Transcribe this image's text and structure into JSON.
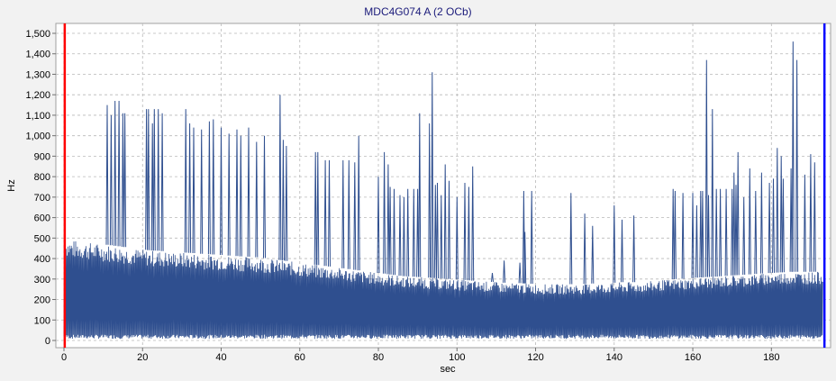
{
  "chart_data": {
    "type": "line",
    "title": "MDC4G074 A (2 OCb)",
    "xlabel": "sec",
    "ylabel": "Hz",
    "xlim": [
      0,
      195
    ],
    "ylim": [
      0,
      1550
    ],
    "x_ticks": [
      0,
      20,
      40,
      60,
      80,
      100,
      120,
      140,
      160,
      180
    ],
    "y_ticks": [
      0,
      100,
      200,
      300,
      400,
      500,
      600,
      700,
      800,
      900,
      1000,
      1100,
      1200,
      1300,
      1400,
      1500
    ],
    "x_tick_labels": [
      "0",
      "20",
      "40",
      "60",
      "80",
      "100",
      "120",
      "140",
      "160",
      "180"
    ],
    "y_tick_labels": [
      "0",
      "100",
      "200",
      "300",
      "400",
      "500",
      "600",
      "700",
      "800",
      "900",
      "1,000",
      "1,100",
      "1,200",
      "1,300",
      "1,400",
      "1,500"
    ],
    "grid": true,
    "cursors": [
      {
        "x": 0.2,
        "color": "#ff0000"
      },
      {
        "x": 193.5,
        "color": "#0000ff"
      }
    ],
    "series": [
      {
        "color": "#2f4f8f",
        "x": [
          0,
          2,
          4,
          6,
          8,
          10,
          12,
          14,
          16,
          18,
          20,
          22,
          24,
          26,
          28,
          30,
          32,
          34,
          36,
          38,
          40,
          42,
          44,
          46,
          48,
          50,
          52,
          54,
          56,
          58,
          60,
          62,
          64,
          66,
          68,
          70,
          72,
          74,
          76,
          78,
          80,
          82,
          84,
          86,
          88,
          90,
          92,
          94,
          96,
          98,
          100,
          102,
          104,
          106,
          108,
          110,
          112,
          114,
          116,
          118,
          120,
          122,
          124,
          126,
          128,
          130,
          132,
          134,
          136,
          138,
          140,
          142,
          144,
          146,
          148,
          150,
          152,
          154,
          156,
          158,
          160,
          162,
          164,
          166,
          168,
          170,
          172,
          174,
          176,
          178,
          180,
          182,
          184,
          186,
          188,
          190,
          192,
          193
        ],
        "envelope": [
          500,
          490,
          485,
          480,
          475,
          470,
          465,
          460,
          455,
          450,
          445,
          440,
          438,
          435,
          432,
          430,
          428,
          425,
          422,
          420,
          418,
          415,
          412,
          410,
          408,
          405,
          400,
          395,
          390,
          385,
          380,
          375,
          370,
          365,
          360,
          355,
          350,
          345,
          340,
          335,
          330,
          325,
          320,
          315,
          312,
          310,
          308,
          305,
          302,
          300,
          298,
          295,
          292,
          290,
          288,
          285,
          282,
          280,
          280,
          278,
          276,
          275,
          275,
          275,
          275,
          275,
          275,
          278,
          280,
          280,
          282,
          285,
          285,
          285,
          288,
          290,
          295,
          298,
          300,
          302,
          305,
          308,
          310,
          312,
          315,
          318,
          320,
          322,
          325,
          328,
          330,
          332,
          335,
          335,
          335,
          335,
          335,
          340
        ],
        "spikes": [
          {
            "x": 11,
            "y": 1150
          },
          {
            "x": 12,
            "y": 1100
          },
          {
            "x": 13,
            "y": 1170
          },
          {
            "x": 14,
            "y": 1170
          },
          {
            "x": 15,
            "y": 1110
          },
          {
            "x": 15.5,
            "y": 1110
          },
          {
            "x": 21,
            "y": 1130
          },
          {
            "x": 21.5,
            "y": 1130
          },
          {
            "x": 22.5,
            "y": 1060
          },
          {
            "x": 23,
            "y": 1130
          },
          {
            "x": 24,
            "y": 1130
          },
          {
            "x": 25,
            "y": 1110
          },
          {
            "x": 31,
            "y": 1130
          },
          {
            "x": 32,
            "y": 1060
          },
          {
            "x": 33,
            "y": 1040
          },
          {
            "x": 35,
            "y": 1030
          },
          {
            "x": 37,
            "y": 1070
          },
          {
            "x": 38,
            "y": 1080
          },
          {
            "x": 40,
            "y": 1040
          },
          {
            "x": 42,
            "y": 1010
          },
          {
            "x": 44,
            "y": 1030
          },
          {
            "x": 45,
            "y": 1000
          },
          {
            "x": 47,
            "y": 1040
          },
          {
            "x": 49,
            "y": 970
          },
          {
            "x": 51,
            "y": 1000
          },
          {
            "x": 55,
            "y": 1200
          },
          {
            "x": 55.8,
            "y": 980
          },
          {
            "x": 56.6,
            "y": 950
          },
          {
            "x": 64,
            "y": 920
          },
          {
            "x": 64.6,
            "y": 920
          },
          {
            "x": 66.5,
            "y": 880
          },
          {
            "x": 67.5,
            "y": 880
          },
          {
            "x": 71,
            "y": 880
          },
          {
            "x": 72.5,
            "y": 880
          },
          {
            "x": 74,
            "y": 870
          },
          {
            "x": 75,
            "y": 1000
          },
          {
            "x": 80,
            "y": 800
          },
          {
            "x": 81.5,
            "y": 920
          },
          {
            "x": 82.5,
            "y": 860
          },
          {
            "x": 83,
            "y": 750
          },
          {
            "x": 84,
            "y": 740
          },
          {
            "x": 85.5,
            "y": 710
          },
          {
            "x": 86.5,
            "y": 700
          },
          {
            "x": 87.5,
            "y": 740
          },
          {
            "x": 89,
            "y": 740
          },
          {
            "x": 90,
            "y": 740
          },
          {
            "x": 90.5,
            "y": 1110
          },
          {
            "x": 93,
            "y": 1060
          },
          {
            "x": 93.7,
            "y": 1310
          },
          {
            "x": 94.5,
            "y": 760
          },
          {
            "x": 95,
            "y": 770
          },
          {
            "x": 96,
            "y": 710
          },
          {
            "x": 97,
            "y": 860
          },
          {
            "x": 98,
            "y": 780
          },
          {
            "x": 100,
            "y": 700
          },
          {
            "x": 102,
            "y": 770
          },
          {
            "x": 103,
            "y": 750
          },
          {
            "x": 104,
            "y": 850
          },
          {
            "x": 109,
            "y": 330
          },
          {
            "x": 112,
            "y": 390
          },
          {
            "x": 116,
            "y": 380
          },
          {
            "x": 117,
            "y": 730
          },
          {
            "x": 117.3,
            "y": 530
          },
          {
            "x": 119,
            "y": 730
          },
          {
            "x": 129,
            "y": 720
          },
          {
            "x": 132.5,
            "y": 620
          },
          {
            "x": 134.5,
            "y": 560
          },
          {
            "x": 140,
            "y": 660
          },
          {
            "x": 142,
            "y": 590
          },
          {
            "x": 145,
            "y": 610
          },
          {
            "x": 155,
            "y": 740
          },
          {
            "x": 155.5,
            "y": 730
          },
          {
            "x": 157.5,
            "y": 720
          },
          {
            "x": 160,
            "y": 720
          },
          {
            "x": 161,
            "y": 660
          },
          {
            "x": 162,
            "y": 730
          },
          {
            "x": 162.5,
            "y": 730
          },
          {
            "x": 163.5,
            "y": 1370
          },
          {
            "x": 164,
            "y": 710
          },
          {
            "x": 165,
            "y": 1130
          },
          {
            "x": 166,
            "y": 740
          },
          {
            "x": 167,
            "y": 740
          },
          {
            "x": 168.5,
            "y": 740
          },
          {
            "x": 170,
            "y": 740
          },
          {
            "x": 170.5,
            "y": 820
          },
          {
            "x": 171,
            "y": 760
          },
          {
            "x": 171.5,
            "y": 920
          },
          {
            "x": 173,
            "y": 700
          },
          {
            "x": 174.5,
            "y": 840
          },
          {
            "x": 176,
            "y": 730
          },
          {
            "x": 177.5,
            "y": 820
          },
          {
            "x": 179.5,
            "y": 770
          },
          {
            "x": 180.5,
            "y": 790
          },
          {
            "x": 181.5,
            "y": 940
          },
          {
            "x": 182.5,
            "y": 900
          },
          {
            "x": 183,
            "y": 790
          },
          {
            "x": 185,
            "y": 840
          },
          {
            "x": 185.5,
            "y": 1460
          },
          {
            "x": 186.5,
            "y": 1370
          },
          {
            "x": 188.5,
            "y": 810
          },
          {
            "x": 190,
            "y": 910
          },
          {
            "x": 191,
            "y": 870
          }
        ]
      }
    ]
  }
}
